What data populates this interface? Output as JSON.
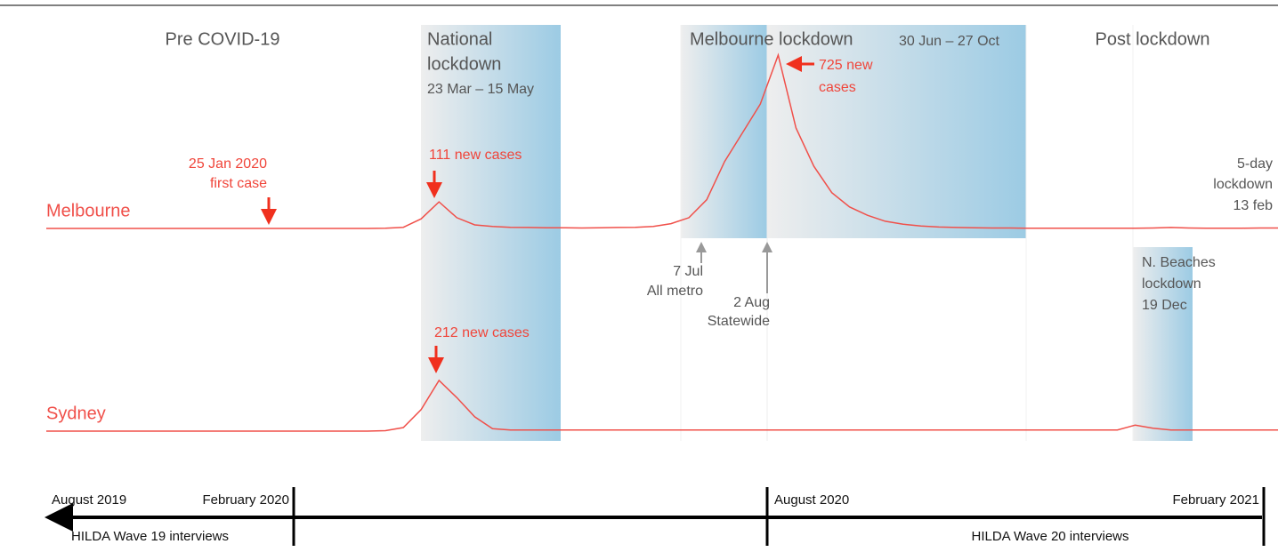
{
  "periods": {
    "pre": "Pre COVID-19",
    "national": [
      "National",
      "lockdown"
    ],
    "national_dates": "23 Mar – 15 May",
    "melbourne": "Melbourne lockdown",
    "melbourne_dates": "30 Jun – 27 Oct",
    "post": "Post lockdown"
  },
  "annotations": {
    "peak_mel": [
      "725 new",
      "cases"
    ],
    "first_case": [
      "25 Jan 2020",
      "first case"
    ],
    "peak_mel_first": "111 new cases",
    "peak_syd": "212 new cases",
    "snap": [
      "5-day",
      "lockdown",
      "13 feb"
    ],
    "metro": [
      "7 Jul",
      "All metro"
    ],
    "statewide": [
      "2 Aug",
      "Statewide"
    ],
    "beaches": [
      "N. Beaches",
      "lockdown",
      "19 Dec"
    ]
  },
  "series": [
    {
      "name": "Melbourne",
      "color": "#f0504a",
      "values": [
        0,
        0,
        0,
        0,
        0,
        0,
        0,
        0,
        0,
        0,
        0,
        0,
        0,
        0,
        0,
        0,
        0,
        0,
        0,
        1,
        5,
        40,
        111,
        45,
        15,
        8,
        5,
        4,
        3,
        3,
        2,
        3,
        4,
        5,
        8,
        20,
        45,
        120,
        280,
        400,
        520,
        725,
        420,
        260,
        150,
        90,
        55,
        30,
        18,
        10,
        6,
        4,
        3,
        2,
        2,
        1,
        1,
        1,
        1,
        1,
        1,
        1,
        2,
        4,
        2,
        1,
        1,
        1,
        2,
        2
      ]
    },
    {
      "name": "Sydney",
      "color": "#f0504a",
      "values": [
        0,
        0,
        0,
        0,
        0,
        0,
        0,
        0,
        0,
        0,
        0,
        0,
        0,
        0,
        0,
        0,
        0,
        0,
        0,
        2,
        15,
        90,
        212,
        140,
        60,
        10,
        5,
        5,
        5,
        5,
        5,
        5,
        5,
        5,
        5,
        5,
        5,
        5,
        5,
        5,
        5,
        5,
        5,
        5,
        5,
        5,
        5,
        5,
        5,
        5,
        5,
        5,
        5,
        5,
        5,
        5,
        5,
        5,
        5,
        5,
        5,
        25,
        12,
        5,
        5,
        5,
        5,
        5,
        5,
        5
      ]
    }
  ],
  "timeline": {
    "start": "August 2019",
    "feb20": "February 2020",
    "aug20": "August 2020",
    "end": "February 2021",
    "wave19": "HILDA Wave 19 interviews",
    "wave20": "HILDA Wave 20 interviews"
  }
}
